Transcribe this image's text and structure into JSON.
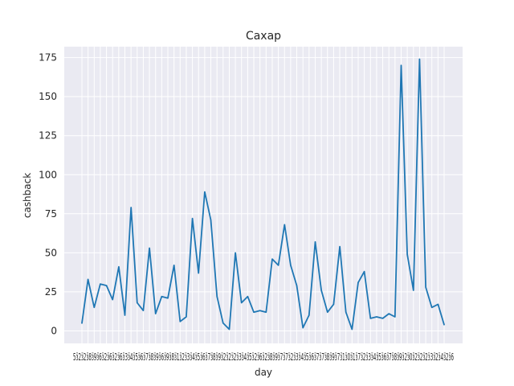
{
  "chart_data": {
    "type": "line",
    "title": "Сахар",
    "xlabel": "day",
    "ylabel": "cashback",
    "ylim": [
      -8,
      182
    ],
    "yticks": [
      0,
      25,
      50,
      75,
      100,
      125,
      150,
      175
    ],
    "grid": true,
    "legend": "none",
    "colors": {
      "line": "#1f77b4",
      "plot_background": "#eaeaf2",
      "grid": "#ffffff"
    },
    "x_tick_labels_overlapping": "5ӟ2ӟ2ӟ8ӟ9ӟ6ӟ2ӟ6ӟ2ӟ6ӟ3ӟ4ӟ5ӟ6ӟ7ӟ8ӟ9ӟ6ӟ9ӟ8ӟ1ӟ2ӟ3ӟ4ӟ5ӟ6ӟ7ӟ8ӟ9ӟ2ӟ2ӟ2ӟ3ӟ4ӟ5ӟ2ӟ6ӟ2ӟ8ӟ9ӟ7ӟ7ӟ2ӟ3ӟ4ӟ5ӟ6ӟ7ӟ7ӟ8ӟ9ӟ7ӟ1ӟ0ӟ1ӟ7ӟ2ӟ3ӟ4ӟ5ӟ6ӟ7ӟ8ӟ9ӟ2ӟ0ӟ2ӟ2ӟ2ӟ3ӟ2ӟ4ӟ2ӟ6",
    "series": [
      {
        "values": [
          5,
          33,
          15,
          30,
          29,
          20,
          41,
          10,
          79,
          18,
          13,
          53,
          11,
          22,
          21,
          42,
          6,
          9,
          72,
          37,
          89,
          71,
          22,
          5,
          1,
          50,
          18,
          22,
          12,
          13,
          12,
          46,
          42,
          68,
          42,
          29,
          2,
          10,
          57,
          26,
          12,
          17,
          54,
          12,
          1,
          31,
          38,
          8,
          9,
          8,
          11,
          9,
          170,
          49,
          26,
          174,
          28,
          15,
          17,
          4
        ]
      }
    ]
  }
}
